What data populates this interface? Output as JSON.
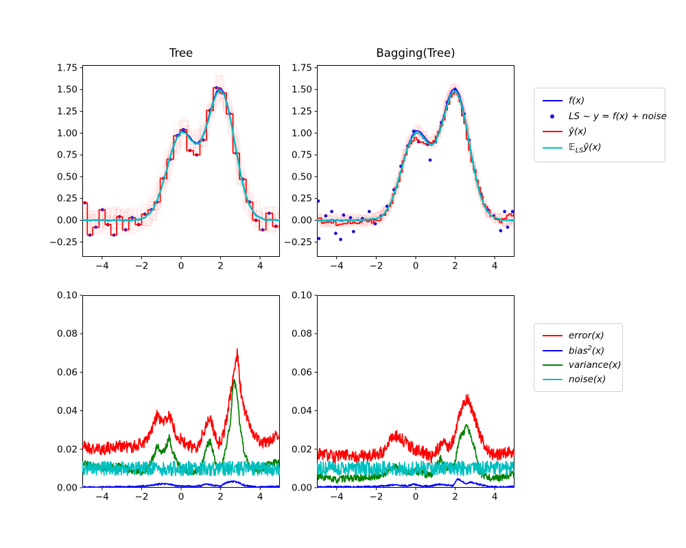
{
  "colors": {
    "blue": "#0000ff",
    "red": "#ff0000",
    "cyan": "#00bfbf",
    "green": "#008000",
    "dot": "#1f0fd6",
    "faint_red": "rgba(255,0,0,0.055)",
    "axis": "#000000"
  },
  "legends": {
    "top": {
      "items": [
        {
          "name": "f",
          "marker": "line",
          "color": "#0000ff",
          "parts": [
            {
              "t": "f(x)"
            }
          ]
        },
        {
          "name": "ls",
          "marker": "dot",
          "color": "#1f0fd6",
          "parts": [
            {
              "t": "LS ~ y = f(x) + noise"
            }
          ]
        },
        {
          "name": "y-hat",
          "marker": "line",
          "color": "#ff0000",
          "parts": [
            {
              "t": "ŷ(x)"
            }
          ]
        },
        {
          "name": "els-y-hat",
          "marker": "line",
          "color": "#00bfbf",
          "parts": [
            {
              "t": "𝔼"
            },
            {
              "t": "LS",
              "sub": true
            },
            {
              "t": "ŷ(x)"
            }
          ]
        }
      ]
    },
    "bottom": {
      "items": [
        {
          "name": "error",
          "marker": "line",
          "color": "#ff0000",
          "parts": [
            {
              "t": "error(x)"
            }
          ]
        },
        {
          "name": "bias2",
          "marker": "line",
          "color": "#0000ff",
          "parts": [
            {
              "t": "bias"
            },
            {
              "t": "2",
              "sup": true
            },
            {
              "t": "(x)"
            }
          ]
        },
        {
          "name": "variance",
          "marker": "line",
          "color": "#008000",
          "parts": [
            {
              "t": "variance(x)"
            }
          ]
        },
        {
          "name": "noise",
          "marker": "line",
          "color": "#00bfbf",
          "parts": [
            {
              "t": "noise(x)"
            }
          ]
        }
      ]
    }
  },
  "chart_data": [
    {
      "id": "tree-top",
      "type": "line",
      "title": "Tree",
      "xlim": [
        -5,
        5
      ],
      "ylim": [
        -0.42,
        1.78
      ],
      "xticks": [
        -4,
        -2,
        0,
        2,
        4
      ],
      "xtick_labels": [
        "−4",
        "−2",
        "0",
        "2",
        "4"
      ],
      "yticks": [
        -0.25,
        0,
        0.25,
        0.5,
        0.75,
        1,
        1.25,
        1.5,
        1.75
      ],
      "ytick_labels": [
        "−0.25",
        "0.00",
        "0.25",
        "0.50",
        "0.75",
        "1.00",
        "1.25",
        "1.50",
        "1.75"
      ],
      "f": {
        "x_start": -5,
        "x_step": 0.2,
        "values": [
          0,
          0,
          0,
          0,
          0,
          0,
          0,
          0,
          0,
          0,
          0,
          0,
          0.001,
          0.003,
          0.008,
          0.018,
          0.039,
          0.077,
          0.141,
          0.237,
          0.368,
          0.527,
          0.698,
          0.852,
          0.961,
          1.027,
          1.02,
          0.968,
          0.909,
          0.882,
          0.92,
          1.028,
          1.188,
          1.355,
          1.48,
          1.518,
          1.449,
          1.281,
          1.048,
          0.791,
          0.552,
          0.355,
          0.211,
          0.116,
          0.059,
          0.027,
          0.012,
          0.005,
          0.002,
          0.001,
          0
        ]
      },
      "scatter": {
        "x": [
          -4.87,
          -4.62,
          -4.32,
          -3.98,
          -3.71,
          -3.4,
          -3.12,
          -2.81,
          -2.48,
          -2.15,
          -1.84,
          -1.51,
          -1.22,
          -0.89,
          -0.55,
          -0.21,
          0.12,
          0.45,
          0.79,
          1.12,
          1.46,
          1.79,
          2.12,
          2.46,
          2.79,
          3.12,
          3.46,
          3.79,
          4.13,
          4.46,
          4.8
        ],
        "y": [
          0.2,
          -0.17,
          -0.08,
          0.12,
          -0.05,
          -0.17,
          0.04,
          -0.11,
          0.03,
          -0.05,
          0.07,
          0.12,
          0.21,
          0.48,
          0.7,
          0.97,
          1.04,
          0.8,
          0.75,
          0.92,
          1.26,
          1.52,
          1.46,
          1.22,
          0.77,
          0.47,
          0.21,
          0.0,
          -0.11,
          0.08,
          -0.07
        ]
      },
      "prediction": {
        "mode": "tree-step"
      },
      "ensemble": {
        "n": 20,
        "jitter": 0.16,
        "step": 0.3,
        "seed": 11
      },
      "mean_curve": {
        "scale": 0.985,
        "jitter": 0.01,
        "seed": 5
      }
    },
    {
      "id": "bagging-top",
      "type": "line",
      "title": "Bagging(Tree)",
      "xlim": [
        -5,
        5
      ],
      "ylim": [
        -0.42,
        1.78
      ],
      "xticks": [
        -4,
        -2,
        0,
        2,
        4
      ],
      "xtick_labels": [
        "−4",
        "−2",
        "0",
        "2",
        "4"
      ],
      "yticks": [
        -0.25,
        0,
        0.25,
        0.5,
        0.75,
        1,
        1.25,
        1.5,
        1.75
      ],
      "ytick_labels": [
        "−0.25",
        "0.00",
        "0.25",
        "0.50",
        "0.75",
        "1.00",
        "1.25",
        "1.50",
        "1.75"
      ],
      "f": {
        "x_start": -5,
        "x_step": 0.2,
        "values": [
          0,
          0,
          0,
          0,
          0,
          0,
          0,
          0,
          0,
          0,
          0,
          0,
          0.001,
          0.003,
          0.008,
          0.018,
          0.039,
          0.077,
          0.141,
          0.237,
          0.368,
          0.527,
          0.698,
          0.852,
          0.961,
          1.027,
          1.02,
          0.968,
          0.909,
          0.882,
          0.92,
          1.028,
          1.188,
          1.355,
          1.48,
          1.518,
          1.449,
          1.281,
          1.048,
          0.791,
          0.552,
          0.355,
          0.211,
          0.116,
          0.059,
          0.027,
          0.012,
          0.005,
          0.002,
          0.001,
          0
        ]
      },
      "scatter": {
        "x": [
          -4.93,
          -4.9,
          -4.55,
          -4.25,
          -4.05,
          -3.8,
          -3.65,
          -3.3,
          -3.15,
          -2.7,
          -2.35,
          -2.05,
          -1.75,
          -1.45,
          -1.1,
          -0.75,
          -0.4,
          -0.1,
          0.15,
          0.4,
          0.6,
          0.73,
          1.0,
          1.3,
          1.6,
          1.8,
          2.0,
          2.2,
          2.45,
          2.7,
          3.0,
          3.3,
          3.65,
          3.95,
          4.3,
          4.5,
          4.65,
          4.9
        ],
        "y": [
          0.22,
          -0.21,
          0.05,
          0.1,
          -0.15,
          -0.22,
          0.06,
          0.03,
          -0.13,
          0.02,
          0.1,
          -0.04,
          0.05,
          0.16,
          0.35,
          0.62,
          0.85,
          1.02,
          0.9,
          0.95,
          0.87,
          0.69,
          0.9,
          1.12,
          1.35,
          1.45,
          1.5,
          1.42,
          1.22,
          0.92,
          0.56,
          0.3,
          0.12,
          0.05,
          -0.12,
          0.1,
          -0.08,
          0.1
        ]
      },
      "prediction": {
        "mode": "ctrl-step",
        "jitter": 0.022,
        "step": 0.12,
        "seed": 9,
        "x": [
          -5,
          -4.6,
          -4.2,
          -3.8,
          -3.4,
          -3,
          -2.6,
          -2.2,
          -1.8,
          -1.5,
          -1.2,
          -0.9,
          -0.6,
          -0.3,
          0,
          0.3,
          0.6,
          0.9,
          1.2,
          1.5,
          1.8,
          2,
          2.2,
          2.5,
          2.8,
          3.1,
          3.4,
          3.7,
          4,
          4.3,
          4.6,
          5
        ],
        "y": [
          0.05,
          -0.04,
          -0.02,
          -0.06,
          -0.02,
          -0.04,
          -0.01,
          -0.02,
          0.02,
          0.09,
          0.22,
          0.42,
          0.7,
          0.88,
          0.93,
          0.9,
          0.87,
          0.89,
          1.02,
          1.22,
          1.42,
          1.47,
          1.4,
          1.1,
          0.72,
          0.45,
          0.22,
          0.1,
          0.01,
          -0.02,
          0.04,
          0.08
        ]
      },
      "ensemble": {
        "n": 20,
        "jitter": 0.08,
        "step": 0.18,
        "seed": 12
      },
      "mean_curve": {
        "scale": 0.98,
        "jitter": 0.008,
        "seed": 6
      }
    },
    {
      "id": "tree-bottom",
      "type": "line",
      "title": "",
      "xlim": [
        -5,
        5
      ],
      "ylim": [
        0,
        0.1
      ],
      "xticks": [
        -4,
        -2,
        0,
        2,
        4
      ],
      "xtick_labels": [
        "−4",
        "−2",
        "0",
        "2",
        "4"
      ],
      "yticks": [
        0,
        0.02,
        0.04,
        0.06,
        0.08,
        0.1
      ],
      "ytick_labels": [
        "0.00",
        "0.02",
        "0.04",
        "0.06",
        "0.08",
        "0.10"
      ],
      "series": [
        {
          "name": "error",
          "color": "#ff0000",
          "jitter": 0.0032,
          "seed": 21,
          "x": [
            -5,
            -4.5,
            -4,
            -3.5,
            -3,
            -2.5,
            -2,
            -1.7,
            -1.4,
            -1.2,
            -1,
            -0.8,
            -0.6,
            -0.4,
            -0.2,
            0,
            0.3,
            0.6,
            0.9,
            1.1,
            1.3,
            1.5,
            1.7,
            1.9,
            2.1,
            2.3,
            2.5,
            2.7,
            2.85,
            3,
            3.2,
            3.5,
            3.8,
            4.1,
            4.4,
            4.7,
            5
          ],
          "y": [
            0.022,
            0.02,
            0.02,
            0.021,
            0.022,
            0.021,
            0.023,
            0.025,
            0.032,
            0.038,
            0.034,
            0.035,
            0.038,
            0.032,
            0.027,
            0.025,
            0.022,
            0.021,
            0.022,
            0.028,
            0.034,
            0.036,
            0.028,
            0.023,
            0.026,
            0.036,
            0.048,
            0.062,
            0.07,
            0.052,
            0.04,
            0.032,
            0.026,
            0.023,
            0.024,
            0.026,
            0.028
          ]
        },
        {
          "name": "bias2",
          "color": "#0000ff",
          "jitter": 0.0004,
          "seed": 22,
          "x": [
            -5,
            -4,
            -3,
            -2.2,
            -1.8,
            -1.4,
            -1,
            -0.6,
            -0.2,
            0.2,
            0.6,
            1,
            1.3,
            1.6,
            2,
            2.3,
            2.6,
            2.9,
            3.2,
            3.6,
            4,
            4.5,
            5
          ],
          "y": [
            0.0004,
            0.0004,
            0.0005,
            0.0006,
            0.001,
            0.0015,
            0.002,
            0.0018,
            0.001,
            0.0008,
            0.0008,
            0.001,
            0.002,
            0.0012,
            0.0008,
            0.0028,
            0.0032,
            0.0028,
            0.0012,
            0.0006,
            0.0005,
            0.0005,
            0.0006
          ]
        },
        {
          "name": "variance",
          "color": "#008000",
          "jitter": 0.0018,
          "seed": 23,
          "x": [
            -5,
            -4.5,
            -4,
            -3.5,
            -3,
            -2.5,
            -2,
            -1.7,
            -1.4,
            -1.2,
            -1,
            -0.8,
            -0.6,
            -0.4,
            -0.2,
            0,
            0.3,
            0.6,
            0.9,
            1.1,
            1.3,
            1.5,
            1.7,
            1.9,
            2.1,
            2.3,
            2.5,
            2.65,
            2.8,
            3,
            3.2,
            3.5,
            3.8,
            4.1,
            4.4,
            4.7,
            5
          ],
          "y": [
            0.013,
            0.011,
            0.01,
            0.011,
            0.011,
            0.009,
            0.008,
            0.01,
            0.016,
            0.022,
            0.018,
            0.02,
            0.026,
            0.018,
            0.013,
            0.011,
            0.009,
            0.008,
            0.009,
            0.014,
            0.022,
            0.024,
            0.014,
            0.009,
            0.013,
            0.022,
            0.035,
            0.056,
            0.052,
            0.03,
            0.018,
            0.01,
            0.009,
            0.01,
            0.012,
            0.013,
            0.014
          ]
        },
        {
          "name": "noise",
          "color": "#00bfbf",
          "jitter": 0.0038,
          "seed": 24,
          "x": [
            -5,
            5
          ],
          "y": [
            0.01,
            0.01
          ]
        }
      ]
    },
    {
      "id": "bagging-bottom",
      "type": "line",
      "title": "",
      "xlim": [
        -5,
        5
      ],
      "ylim": [
        0,
        0.1
      ],
      "xticks": [
        -4,
        -2,
        0,
        2,
        4
      ],
      "xtick_labels": [
        "−4",
        "−2",
        "0",
        "2",
        "4"
      ],
      "yticks": [
        0,
        0.02,
        0.04,
        0.06,
        0.08,
        0.1
      ],
      "ytick_labels": [
        "0.00",
        "0.02",
        "0.04",
        "0.06",
        "0.08",
        "0.10"
      ],
      "series": [
        {
          "name": "error",
          "color": "#ff0000",
          "jitter": 0.0032,
          "seed": 31,
          "x": [
            -5,
            -4.5,
            -4,
            -3.5,
            -3,
            -2.5,
            -2,
            -1.6,
            -1.3,
            -1,
            -0.7,
            -0.4,
            -0.1,
            0.2,
            0.5,
            0.8,
            1.1,
            1.4,
            1.7,
            2,
            2.2,
            2.4,
            2.6,
            2.8,
            3,
            3.2,
            3.5,
            3.8,
            4.1,
            4.5,
            5
          ],
          "y": [
            0.018,
            0.017,
            0.016,
            0.017,
            0.016,
            0.017,
            0.017,
            0.019,
            0.026,
            0.027,
            0.025,
            0.023,
            0.02,
            0.019,
            0.018,
            0.016,
            0.02,
            0.024,
            0.021,
            0.027,
            0.038,
            0.043,
            0.047,
            0.042,
            0.036,
            0.028,
            0.022,
            0.018,
            0.017,
            0.018,
            0.019
          ]
        },
        {
          "name": "bias2",
          "color": "#0000ff",
          "jitter": 0.0004,
          "seed": 32,
          "x": [
            -5,
            -4,
            -3,
            -2.2,
            -1.6,
            -1.2,
            -0.8,
            -0.4,
            -0.1,
            0.3,
            0.8,
            1.2,
            1.5,
            1.9,
            2.1,
            2.3,
            2.5,
            2.8,
            3,
            3.3,
            3.7,
            4,
            4.5,
            5
          ],
          "y": [
            0.0004,
            0.0005,
            0.0005,
            0.0006,
            0.001,
            0.0014,
            0.0012,
            0.001,
            0.0018,
            0.0008,
            0.001,
            0.0018,
            0.0015,
            0.001,
            0.0045,
            0.0038,
            0.002,
            0.003,
            0.0022,
            0.0015,
            0.0006,
            0.0005,
            0.0005,
            0.0007
          ]
        },
        {
          "name": "variance",
          "color": "#008000",
          "jitter": 0.0018,
          "seed": 33,
          "x": [
            -5,
            -4.5,
            -4,
            -3.5,
            -3,
            -2.5,
            -2,
            -1.6,
            -1.3,
            -1,
            -0.7,
            -0.4,
            -0.1,
            0.2,
            0.5,
            0.8,
            1.1,
            1.3,
            1.5,
            1.8,
            2,
            2.2,
            2.4,
            2.6,
            2.8,
            3,
            3.2,
            3.5,
            3.8,
            4.2,
            4.6,
            5
          ],
          "y": [
            0.006,
            0.005,
            0.004,
            0.005,
            0.005,
            0.005,
            0.006,
            0.007,
            0.01,
            0.011,
            0.009,
            0.008,
            0.009,
            0.008,
            0.007,
            0.006,
            0.012,
            0.016,
            0.01,
            0.011,
            0.013,
            0.026,
            0.028,
            0.032,
            0.026,
            0.02,
            0.008,
            0.006,
            0.005,
            0.005,
            0.006,
            0.007
          ]
        },
        {
          "name": "noise",
          "color": "#00bfbf",
          "jitter": 0.0038,
          "seed": 34,
          "x": [
            -5,
            5
          ],
          "y": [
            0.01,
            0.01
          ]
        }
      ]
    }
  ]
}
